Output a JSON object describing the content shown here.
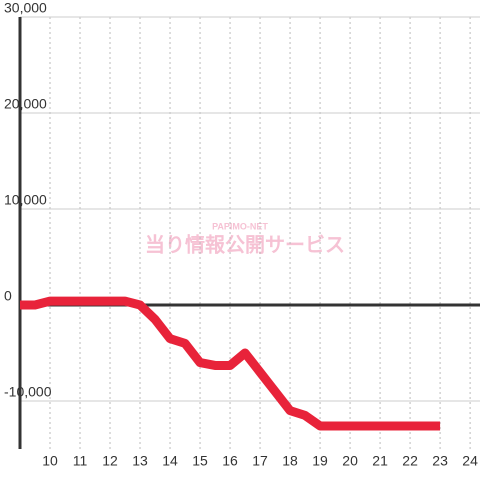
{
  "chart_data": {
    "type": "line",
    "watermark": {
      "top": "PAPIMO-NET",
      "main": "当り情報公開サービス"
    },
    "x": [
      9,
      9.5,
      10,
      11,
      12,
      12.5,
      13,
      13.5,
      14,
      14.5,
      15,
      15.5,
      16,
      16.5,
      17,
      17.5,
      18,
      18.5,
      19,
      20,
      21,
      22,
      23
    ],
    "series": [
      {
        "color": "#e8233a",
        "values": [
          0,
          0,
          400,
          400,
          400,
          400,
          0,
          -1500,
          -3500,
          -4000,
          -6000,
          -6300,
          -6300,
          -5000,
          -7000,
          -9000,
          -11000,
          -11500,
          -12600,
          -12600,
          -12600,
          -12600,
          -12600
        ]
      }
    ],
    "xlim": [
      9,
      24.33
    ],
    "ylim": [
      -15000,
      30000
    ],
    "xticks": [
      10,
      11,
      12,
      13,
      14,
      15,
      16,
      17,
      18,
      19,
      20,
      21,
      22,
      23,
      24
    ],
    "yticks": [
      {
        "value": 30000,
        "label": "30,000"
      },
      {
        "value": 20000,
        "label": "20,000"
      },
      {
        "value": 10000,
        "label": "10,000"
      },
      0,
      {
        "value": -10000,
        "label": "-10,000"
      }
    ],
    "grid": true
  }
}
